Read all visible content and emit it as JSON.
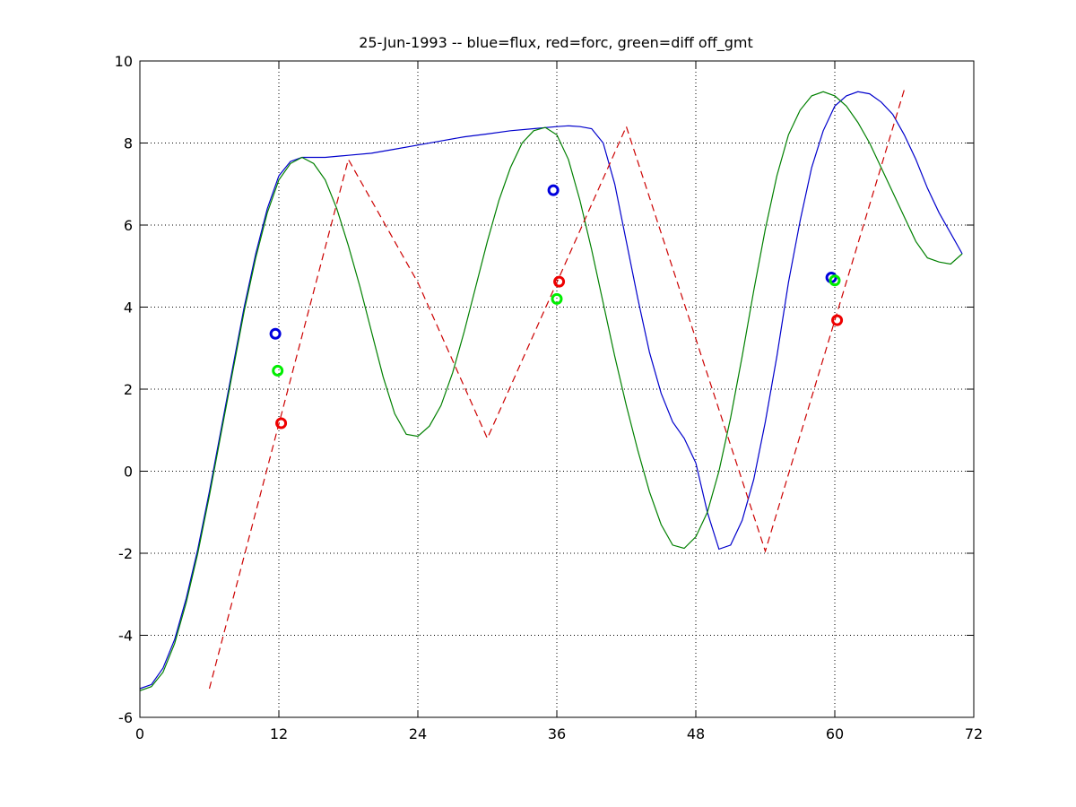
{
  "chart_data": {
    "type": "line",
    "title": "25-Jun-1993 -- blue=flux, red=forc, green=diff off_gmt",
    "xlabel": "",
    "ylabel": "",
    "xlim": [
      0,
      72
    ],
    "ylim": [
      -6,
      10
    ],
    "x_ticks": [
      0,
      12,
      24,
      36,
      48,
      60,
      72
    ],
    "y_ticks": [
      -6,
      -4,
      -2,
      0,
      2,
      4,
      6,
      8,
      10
    ],
    "x_tick_labels": [
      "0",
      "12",
      "24",
      "36",
      "48",
      "60",
      "72"
    ],
    "y_tick_labels": [
      "-6",
      "-4",
      "-2",
      "0",
      "2",
      "4",
      "6",
      "8",
      "10"
    ],
    "grid": true,
    "legend": "none",
    "series": [
      {
        "color": "#0000cc",
        "style": "solid",
        "x": [
          0,
          1,
          2,
          3,
          4,
          5,
          6,
          7,
          8,
          9,
          10,
          11,
          12,
          13,
          14,
          15,
          16,
          18,
          20,
          22,
          24,
          26,
          28,
          30,
          32,
          34,
          36,
          37,
          38,
          39,
          40,
          41,
          42,
          43,
          44,
          45,
          46,
          47,
          48,
          49,
          50,
          51,
          52,
          53,
          54,
          55,
          56,
          57,
          58,
          59,
          60,
          61,
          62,
          63,
          64,
          65,
          66,
          67,
          68,
          69,
          70,
          71
        ],
        "y": [
          -5.3,
          -5.2,
          -4.8,
          -4.1,
          -3.1,
          -1.9,
          -0.5,
          1.0,
          2.5,
          4.0,
          5.3,
          6.4,
          7.2,
          7.55,
          7.65,
          7.65,
          7.65,
          7.7,
          7.75,
          7.85,
          7.95,
          8.05,
          8.15,
          8.22,
          8.3,
          8.35,
          8.4,
          8.42,
          8.4,
          8.35,
          8.0,
          7.0,
          5.6,
          4.2,
          2.9,
          1.9,
          1.2,
          0.8,
          0.2,
          -1.0,
          -1.9,
          -1.8,
          -1.2,
          -0.2,
          1.2,
          2.8,
          4.6,
          6.1,
          7.4,
          8.3,
          8.9,
          9.15,
          9.25,
          9.2,
          9.0,
          8.7,
          8.2,
          7.6,
          6.9,
          6.3,
          5.8,
          5.3
        ]
      },
      {
        "color": "#008000",
        "style": "solid",
        "x": [
          0,
          1,
          2,
          3,
          4,
          5,
          6,
          7,
          8,
          9,
          10,
          11,
          12,
          13,
          14,
          15,
          16,
          17,
          18,
          19,
          20,
          21,
          22,
          23,
          24,
          25,
          26,
          27,
          28,
          29,
          30,
          31,
          32,
          33,
          34,
          35,
          36,
          37,
          38,
          39,
          40,
          41,
          42,
          43,
          44,
          45,
          46,
          47,
          48,
          49,
          50,
          51,
          52,
          53,
          54,
          55,
          56,
          57,
          58,
          59,
          60,
          61,
          62,
          63,
          64,
          65,
          66,
          67,
          68,
          69,
          70,
          71
        ],
        "y": [
          -5.35,
          -5.25,
          -4.9,
          -4.2,
          -3.2,
          -2.0,
          -0.6,
          0.9,
          2.4,
          3.9,
          5.2,
          6.3,
          7.1,
          7.5,
          7.65,
          7.5,
          7.1,
          6.4,
          5.5,
          4.5,
          3.4,
          2.3,
          1.4,
          0.9,
          0.85,
          1.1,
          1.6,
          2.4,
          3.4,
          4.5,
          5.6,
          6.6,
          7.4,
          8.0,
          8.3,
          8.38,
          8.2,
          7.6,
          6.6,
          5.4,
          4.1,
          2.8,
          1.6,
          0.5,
          -0.5,
          -1.3,
          -1.8,
          -1.88,
          -1.6,
          -1.0,
          0.0,
          1.3,
          2.8,
          4.4,
          5.9,
          7.2,
          8.2,
          8.8,
          9.15,
          9.25,
          9.15,
          8.9,
          8.5,
          8.0,
          7.4,
          6.8,
          6.2,
          5.6,
          5.2,
          5.1,
          5.05,
          5.3
        ]
      },
      {
        "color": "#cc0000",
        "style": "dashed",
        "x": [
          6,
          18,
          24,
          30,
          42,
          54,
          66
        ],
        "y": [
          -5.3,
          7.6,
          4.6,
          0.8,
          8.4,
          -1.95,
          9.3
        ]
      }
    ],
    "markers": [
      {
        "x": 11.7,
        "y": 3.35,
        "color": "#0000dd"
      },
      {
        "x": 11.9,
        "y": 2.45,
        "color": "#00ee00"
      },
      {
        "x": 12.2,
        "y": 1.17,
        "color": "#ee0000"
      },
      {
        "x": 35.7,
        "y": 6.85,
        "color": "#0000dd"
      },
      {
        "x": 36.0,
        "y": 4.2,
        "color": "#00ee00"
      },
      {
        "x": 36.2,
        "y": 4.62,
        "color": "#ee0000"
      },
      {
        "x": 59.7,
        "y": 4.72,
        "color": "#0000dd"
      },
      {
        "x": 60.0,
        "y": 4.65,
        "color": "#00ee00"
      },
      {
        "x": 60.2,
        "y": 3.68,
        "color": "#ee0000"
      }
    ]
  }
}
